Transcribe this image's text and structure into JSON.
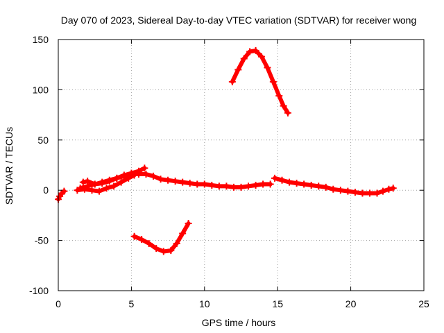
{
  "chart_data": {
    "type": "scatter",
    "title": "Day 070 of 2023, Sidereal Day-to-day VTEC variation (SDTVAR) for receiver wong",
    "xlabel": "GPS time / hours",
    "ylabel": "SDTVAR / TECUs",
    "xlim": [
      0,
      25
    ],
    "ylim": [
      -100,
      150
    ],
    "grid": true,
    "x_ticks": [
      {
        "value": 0,
        "label": "0"
      },
      {
        "value": 5,
        "label": "5"
      },
      {
        "value": 10,
        "label": "10"
      },
      {
        "value": 15,
        "label": "15"
      },
      {
        "value": 20,
        "label": "20"
      },
      {
        "value": 25,
        "label": "25"
      }
    ],
    "y_ticks": [
      {
        "value": -100,
        "label": "-100"
      },
      {
        "value": -50,
        "label": "-50"
      },
      {
        "value": 0,
        "label": "0"
      },
      {
        "value": 50,
        "label": "50"
      },
      {
        "value": 100,
        "label": "100"
      },
      {
        "value": 150,
        "label": "150"
      }
    ],
    "marker_color": "#ff0000",
    "series": [
      {
        "name": "track-a",
        "points": [
          [
            0.0,
            -9
          ],
          [
            0.1,
            -6
          ],
          [
            0.25,
            -3
          ],
          [
            0.4,
            -1
          ]
        ]
      },
      {
        "name": "track-b",
        "points": [
          [
            1.3,
            0
          ],
          [
            1.8,
            1
          ],
          [
            2.3,
            0
          ],
          [
            2.8,
            -1
          ],
          [
            3.3,
            2
          ],
          [
            3.8,
            4
          ],
          [
            4.3,
            8
          ],
          [
            4.8,
            12
          ],
          [
            5.2,
            15
          ]
        ]
      },
      {
        "name": "track-c",
        "points": [
          [
            1.5,
            2
          ],
          [
            2.0,
            4
          ],
          [
            2.5,
            6
          ],
          [
            3.0,
            7
          ],
          [
            3.5,
            9
          ],
          [
            4.0,
            12
          ],
          [
            4.5,
            15
          ],
          [
            5.0,
            17
          ],
          [
            5.5,
            19
          ],
          [
            5.9,
            22
          ]
        ]
      },
      {
        "name": "track-d",
        "points": [
          [
            1.7,
            8
          ],
          [
            2.0,
            9
          ],
          [
            2.5,
            6
          ],
          [
            3.0,
            8
          ],
          [
            3.5,
            10
          ],
          [
            4.0,
            12
          ],
          [
            4.5,
            14
          ],
          [
            5.0,
            16
          ],
          [
            5.5,
            16
          ],
          [
            6.0,
            16
          ],
          [
            6.5,
            14
          ],
          [
            7.0,
            11
          ],
          [
            7.5,
            10
          ],
          [
            8.0,
            9
          ],
          [
            8.5,
            8
          ],
          [
            9.0,
            7
          ],
          [
            9.5,
            6
          ],
          [
            10.0,
            6
          ],
          [
            10.5,
            5
          ],
          [
            11.0,
            4
          ],
          [
            11.5,
            4
          ],
          [
            12.0,
            3
          ],
          [
            12.5,
            3
          ],
          [
            13.0,
            4
          ],
          [
            13.5,
            5
          ],
          [
            14.0,
            6
          ],
          [
            14.5,
            6
          ]
        ]
      },
      {
        "name": "track-e",
        "points": [
          [
            14.8,
            12
          ],
          [
            15.3,
            10
          ],
          [
            15.8,
            8
          ],
          [
            16.3,
            7
          ],
          [
            16.8,
            6
          ],
          [
            17.3,
            5
          ],
          [
            17.8,
            4
          ],
          [
            18.3,
            3
          ],
          [
            18.8,
            1
          ],
          [
            19.3,
            0
          ],
          [
            19.8,
            -1
          ],
          [
            20.3,
            -2
          ],
          [
            20.8,
            -3
          ],
          [
            21.3,
            -3
          ],
          [
            21.8,
            -3
          ],
          [
            22.2,
            -1
          ],
          [
            22.6,
            1
          ],
          [
            22.9,
            2
          ]
        ]
      },
      {
        "name": "track-f",
        "points": [
          [
            5.2,
            -46
          ],
          [
            5.7,
            -49
          ],
          [
            6.2,
            -53
          ],
          [
            6.7,
            -58
          ],
          [
            7.2,
            -61
          ],
          [
            7.7,
            -60
          ],
          [
            8.1,
            -53
          ],
          [
            8.5,
            -43
          ],
          [
            8.9,
            -33
          ]
        ]
      },
      {
        "name": "track-g",
        "points": [
          [
            11.9,
            108
          ],
          [
            12.3,
            120
          ],
          [
            12.7,
            131
          ],
          [
            13.1,
            138
          ],
          [
            13.5,
            139
          ],
          [
            13.9,
            133
          ],
          [
            14.3,
            122
          ],
          [
            14.7,
            108
          ],
          [
            15.1,
            94
          ],
          [
            15.4,
            84
          ],
          [
            15.7,
            77
          ]
        ]
      }
    ]
  }
}
